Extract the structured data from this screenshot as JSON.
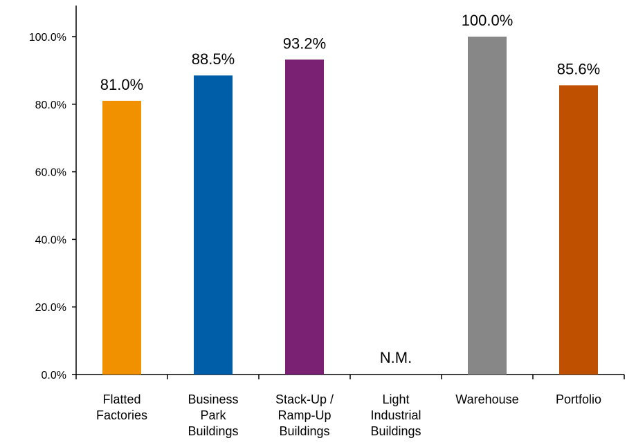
{
  "chart_data": {
    "type": "bar",
    "title": "",
    "xlabel": "",
    "ylabel": "",
    "categories": [
      [
        "Flatted",
        "Factories"
      ],
      [
        "Business",
        "Park",
        "Buildings"
      ],
      [
        "Stack-Up /",
        "Ramp-Up",
        "Buildings"
      ],
      [
        "Light",
        "Industrial",
        "Buildings"
      ],
      [
        "Warehouse"
      ],
      [
        "Portfolio"
      ]
    ],
    "values": [
      81.0,
      88.5,
      93.2,
      null,
      100.0,
      85.6
    ],
    "data_labels": [
      "81.0%",
      "88.5%",
      "93.2%",
      "N.M.",
      "100.0%",
      "85.6%"
    ],
    "colors": [
      "#F29100",
      "#005EA8",
      "#7B2173",
      null,
      "#878787",
      "#BF5000"
    ],
    "ylim": [
      0,
      100
    ],
    "yticks": [
      0,
      20,
      40,
      60,
      80,
      100
    ],
    "ytick_labels": [
      "0.0%",
      "20.0%",
      "40.0%",
      "60.0%",
      "80.0%",
      "100.0%"
    ],
    "grid": false,
    "legend": "none"
  }
}
